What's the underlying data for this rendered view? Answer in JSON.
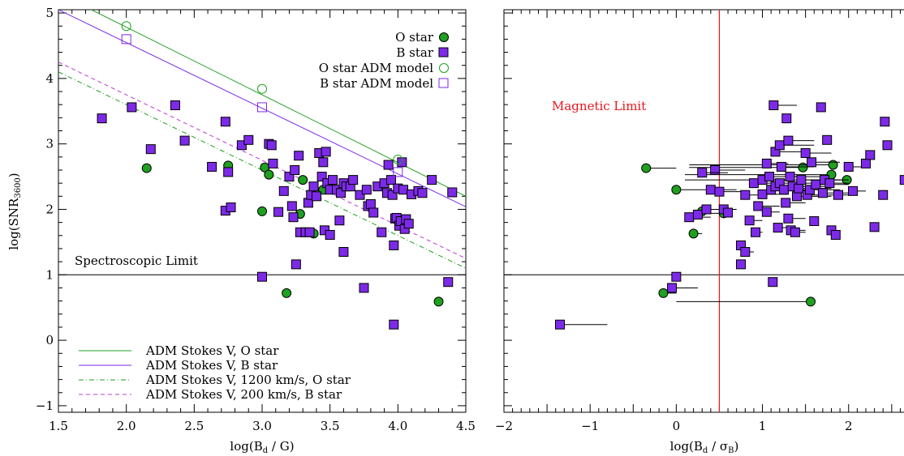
{
  "chart_data": [
    {
      "type": "scatter",
      "xlabel": "log(B_d / G)",
      "ylabel": "log(SNR_3600)",
      "xlim": [
        1.5,
        4.5
      ],
      "ylim": [
        -1.1,
        5.05
      ],
      "xticks": [
        1.5,
        2.0,
        2.5,
        3.0,
        3.5,
        4.0,
        4.5
      ],
      "xtick_labels": [
        "1.5",
        "2.0",
        "2.5",
        "3.0",
        "3.5",
        "4.0",
        "4.5"
      ],
      "yticks": [
        -1,
        0,
        1,
        2,
        3,
        4,
        5
      ],
      "ytick_labels": [
        "−1",
        "0",
        "1",
        "2",
        "3",
        "4",
        "5"
      ],
      "hline": {
        "y": 1.0,
        "label": "Spectroscopic Limit"
      },
      "series": [
        {
          "name": "O star",
          "marker": "filled-circle",
          "color": "#1fa01f",
          "points": [
            [
              2.15,
              2.63
            ],
            [
              2.75,
              2.67
            ],
            [
              3.0,
              1.97
            ],
            [
              3.02,
              2.64
            ],
            [
              3.05,
              2.53
            ],
            [
              3.18,
              0.72
            ],
            [
              3.28,
              1.93
            ],
            [
              3.3,
              2.45
            ],
            [
              3.38,
              1.63
            ],
            [
              3.45,
              2.3
            ],
            [
              4.3,
              0.59
            ]
          ]
        },
        {
          "name": "B star",
          "marker": "filled-square",
          "color": "#7d2ae8",
          "points": [
            [
              1.82,
              3.39
            ],
            [
              2.04,
              3.56
            ],
            [
              2.18,
              2.92
            ],
            [
              2.36,
              3.59
            ],
            [
              2.43,
              3.05
            ],
            [
              2.63,
              2.65
            ],
            [
              2.73,
              1.98
            ],
            [
              2.73,
              3.34
            ],
            [
              2.75,
              2.57
            ],
            [
              2.77,
              2.03
            ],
            [
              2.85,
              2.98
            ],
            [
              2.9,
              3.06
            ],
            [
              3.0,
              0.97
            ],
            [
              3.05,
              3.0
            ],
            [
              3.07,
              2.98
            ],
            [
              3.08,
              2.7
            ],
            [
              3.12,
              1.96
            ],
            [
              3.16,
              2.28
            ],
            [
              3.2,
              2.5
            ],
            [
              3.22,
              2.05
            ],
            [
              3.23,
              1.88
            ],
            [
              3.24,
              2.6
            ],
            [
              3.25,
              1.16
            ],
            [
              3.27,
              2.82
            ],
            [
              3.28,
              1.65
            ],
            [
              3.32,
              1.65
            ],
            [
              3.34,
              2.1
            ],
            [
              3.35,
              1.65
            ],
            [
              3.36,
              2.22
            ],
            [
              3.38,
              2.35
            ],
            [
              3.4,
              2.2
            ],
            [
              3.42,
              2.86
            ],
            [
              3.44,
              2.5
            ],
            [
              3.45,
              2.72
            ],
            [
              3.46,
              1.68
            ],
            [
              3.47,
              2.88
            ],
            [
              3.48,
              2.4
            ],
            [
              3.5,
              2.3
            ],
            [
              3.5,
              1.61
            ],
            [
              3.52,
              2.45
            ],
            [
              3.55,
              2.3
            ],
            [
              3.57,
              1.83
            ],
            [
              3.58,
              2.25
            ],
            [
              3.6,
              2.4
            ],
            [
              3.6,
              1.35
            ],
            [
              3.62,
              2.35
            ],
            [
              3.65,
              2.35
            ],
            [
              3.67,
              2.45
            ],
            [
              3.72,
              2.22
            ],
            [
              3.75,
              0.8
            ],
            [
              3.77,
              2.3
            ],
            [
              3.78,
              2.05
            ],
            [
              3.8,
              2.08
            ],
            [
              3.82,
              1.95
            ],
            [
              3.85,
              2.35
            ],
            [
              3.88,
              1.65
            ],
            [
              3.9,
              2.4
            ],
            [
              3.92,
              2.25
            ],
            [
              3.93,
              2.68
            ],
            [
              3.95,
              2.45
            ],
            [
              3.96,
              2.22
            ],
            [
              3.97,
              0.24
            ],
            [
              3.97,
              1.45
            ],
            [
              3.98,
              1.86
            ],
            [
              3.99,
              1.87
            ],
            [
              4.0,
              2.32
            ],
            [
              4.01,
              1.75
            ],
            [
              4.02,
              1.82
            ],
            [
              4.03,
              2.72
            ],
            [
              4.04,
              2.3
            ],
            [
              4.05,
              1.7
            ],
            [
              4.06,
              1.85
            ],
            [
              4.08,
              1.78
            ],
            [
              4.1,
              2.23
            ],
            [
              4.15,
              2.28
            ],
            [
              4.18,
              2.25
            ],
            [
              4.25,
              2.45
            ],
            [
              4.37,
              0.89
            ],
            [
              4.4,
              2.26
            ]
          ]
        },
        {
          "name": "O star ADM model",
          "marker": "open-circle",
          "color": "#1fa01f",
          "points": [
            [
              2.0,
              4.8
            ],
            [
              3.0,
              3.84
            ],
            [
              4.0,
              2.76
            ]
          ]
        },
        {
          "name": "B star ADM model",
          "marker": "open-square",
          "color": "#7d2ae8",
          "points": [
            [
              2.0,
              4.6
            ],
            [
              3.0,
              3.56
            ],
            [
              4.0,
              2.57
            ]
          ]
        }
      ],
      "lines": [
        {
          "name": "ADM Stokes V, O star",
          "style": "solid",
          "color": "#1fa01f",
          "x": [
            1.5,
            4.5
          ],
          "y": [
            5.3,
            2.2
          ]
        },
        {
          "name": "ADM Stokes V, B star",
          "style": "solid",
          "color": "#7d2ae8",
          "x": [
            1.5,
            4.5
          ],
          "y": [
            5.05,
            2.04
          ]
        },
        {
          "name": "ADM Stokes V, 1200 km/s, O star",
          "style": "dashdot",
          "color": "#1fa01f",
          "x": [
            1.5,
            4.5
          ],
          "y": [
            4.1,
            1.1
          ]
        },
        {
          "name": "ADM Stokes V, 200 km/s, B star",
          "style": "dashed",
          "color": "#c037d8",
          "x": [
            1.5,
            4.5
          ],
          "y": [
            4.25,
            1.25
          ]
        }
      ],
      "legend_top": {
        "position": "top-right",
        "entries": [
          "O star",
          "B star",
          "O star ADM model",
          "B star ADM model"
        ]
      },
      "legend_bottom": {
        "position": "bottom-left",
        "entries": [
          "ADM Stokes V, O star",
          "ADM Stokes V, B star",
          "ADM Stokes V, 1200 km/s, O star",
          "ADM Stokes V, 200 km/s, B star"
        ]
      }
    },
    {
      "type": "scatter",
      "xlabel": "log(B_d / σ_B)",
      "xlim": [
        -2,
        3.5
      ],
      "ylim": [
        -1.1,
        5.05
      ],
      "xticks": [
        -2,
        -1,
        0,
        1,
        2,
        3
      ],
      "xtick_labels": [
        "−2",
        "−1",
        "0",
        "1",
        "2",
        "3"
      ],
      "yticks": [
        -1,
        0,
        1,
        2,
        3,
        4,
        5
      ],
      "hline": {
        "y": 1.0
      },
      "vline": {
        "x": 0.5,
        "label": "Magnetic Limit",
        "color": "#e8141c"
      },
      "series": [
        {
          "name": "O star",
          "marker": "filled-circle",
          "color": "#1fa01f",
          "points": [
            [
              -0.35,
              2.63,
              0.0
            ],
            [
              0.0,
              2.3,
              0.45
            ],
            [
              0.2,
              1.63,
              0.3
            ],
            [
              -0.15,
              0.72,
              0.0
            ],
            [
              0.3,
              1.97,
              0.25
            ],
            [
              0.55,
              1.94,
              0.12
            ],
            [
              1.47,
              2.64,
              0.15
            ],
            [
              1.8,
              2.53,
              0.1
            ],
            [
              1.82,
              2.68,
              0.15
            ],
            [
              1.98,
              2.45,
              0.1
            ],
            [
              1.56,
              0.59,
              0.0
            ]
          ]
        },
        {
          "name": "B star",
          "marker": "filled-square",
          "color": "#7d2ae8",
          "points": [
            [
              -1.35,
              0.24,
              -0.8
            ],
            [
              -0.05,
              0.8,
              0.25
            ],
            [
              0.0,
              0.97,
              0.0
            ],
            [
              0.15,
              1.88,
              0.4
            ],
            [
              0.25,
              1.92,
              0.3
            ],
            [
              0.35,
              2.0,
              0.6
            ],
            [
              0.4,
              2.3,
              0.7
            ],
            [
              0.45,
              2.6,
              0.8
            ],
            [
              0.3,
              2.56,
              0.6
            ],
            [
              0.5,
              2.27,
              0.8
            ],
            [
              0.55,
              2.0,
              0.7
            ],
            [
              0.6,
              1.95,
              0.65
            ],
            [
              0.75,
              1.45,
              0.8
            ],
            [
              0.75,
              1.16,
              0.8
            ],
            [
              0.8,
              1.35,
              0.9
            ],
            [
              0.8,
              2.22,
              1.0
            ],
            [
              0.85,
              1.83,
              1.0
            ],
            [
              0.9,
              2.4,
              1.1
            ],
            [
              0.92,
              1.65,
              1.0
            ],
            [
              0.95,
              2.05,
              1.2
            ],
            [
              1.0,
              2.45,
              1.3
            ],
            [
              1.0,
              2.23,
              1.3
            ],
            [
              1.05,
              2.7,
              1.3
            ],
            [
              1.05,
              1.96,
              1.2
            ],
            [
              1.08,
              2.5,
              1.4
            ],
            [
              1.1,
              2.3,
              1.4
            ],
            [
              1.12,
              0.89,
              1.12
            ],
            [
              1.13,
              3.59,
              1.4
            ],
            [
              1.15,
              2.88,
              1.5
            ],
            [
              1.15,
              2.35,
              1.5
            ],
            [
              1.18,
              1.72,
              1.3
            ],
            [
              1.2,
              2.98,
              1.6
            ],
            [
              1.2,
              2.4,
              1.6
            ],
            [
              1.22,
              2.65,
              1.6
            ],
            [
              1.25,
              2.3,
              1.6
            ],
            [
              1.27,
              2.1,
              1.5
            ],
            [
              1.28,
              3.39,
              1.28
            ],
            [
              1.3,
              3.05,
              1.6
            ],
            [
              1.3,
              1.86,
              1.5
            ],
            [
              1.32,
              2.5,
              1.7
            ],
            [
              1.33,
              1.68,
              1.5
            ],
            [
              1.35,
              2.35,
              1.8
            ],
            [
              1.38,
              1.65,
              1.5
            ],
            [
              1.4,
              2.2,
              1.8
            ],
            [
              1.42,
              2.32,
              1.8
            ],
            [
              1.45,
              2.45,
              1.9
            ],
            [
              1.5,
              2.86,
              1.8
            ],
            [
              1.52,
              2.22,
              1.9
            ],
            [
              1.55,
              2.3,
              1.9
            ],
            [
              1.57,
              2.72,
              1.9
            ],
            [
              1.6,
              1.82,
              1.6
            ],
            [
              1.62,
              2.38,
              2.0
            ],
            [
              1.68,
              3.56,
              1.68
            ],
            [
              1.7,
              2.25,
              2.0
            ],
            [
              1.72,
              2.45,
              2.0
            ],
            [
              1.75,
              3.06,
              1.75
            ],
            [
              1.78,
              2.4,
              2.0
            ],
            [
              1.8,
              1.68,
              1.8
            ],
            [
              1.85,
              1.61,
              1.85
            ],
            [
              1.88,
              2.22,
              2.0
            ],
            [
              2.0,
              2.65,
              2.2
            ],
            [
              2.05,
              2.28,
              2.2
            ],
            [
              2.2,
              2.7,
              2.2
            ],
            [
              2.25,
              2.83,
              2.25
            ],
            [
              2.3,
              1.73,
              2.3
            ],
            [
              2.4,
              2.22,
              2.4
            ],
            [
              2.42,
              3.34,
              2.42
            ],
            [
              2.45,
              2.98,
              2.45
            ],
            [
              2.65,
              2.45,
              2.65
            ],
            [
              2.7,
              2.2,
              2.7
            ],
            [
              2.78,
              2.35,
              2.78
            ],
            [
              2.8,
              2.09,
              2.8
            ]
          ]
        }
      ]
    }
  ]
}
